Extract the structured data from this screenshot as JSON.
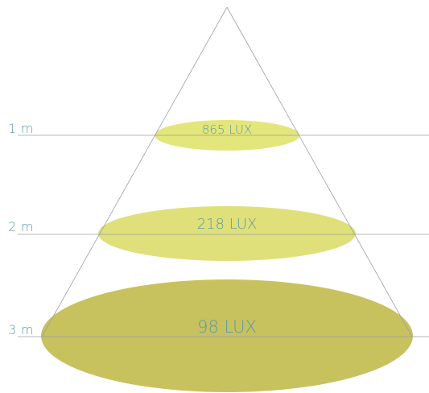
{
  "colors": {
    "line": "#9aa0a2",
    "text": "#5f9aa5",
    "ellipse_light": "#e3e67a",
    "ellipse_mid": "#dfe07a",
    "ellipse_dark": "#c7c25e"
  },
  "levels": [
    {
      "distance": "1 m",
      "lux": "865 LUX"
    },
    {
      "distance": "2 m",
      "lux": "218 LUX"
    },
    {
      "distance": "3 m",
      "lux": "98 LUX"
    }
  ]
}
